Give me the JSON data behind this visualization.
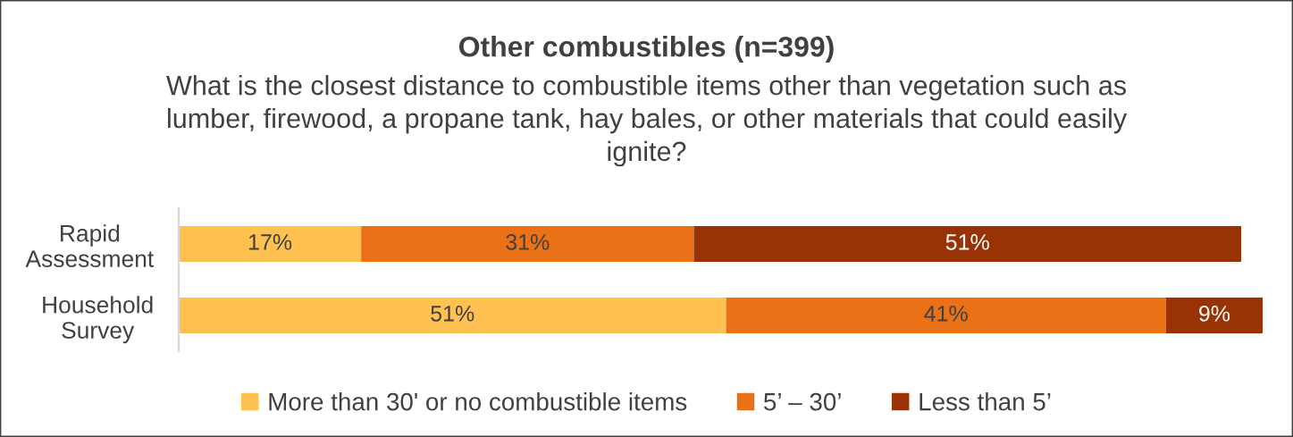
{
  "chart_data": {
    "type": "bar",
    "orientation": "horizontal",
    "stacked": true,
    "title": "Other combustibles (n=399)",
    "subtitle": "What is the closest distance to combustible items other than vegetation such as lumber, firewood, a propane tank, hay bales, or other materials that could easily ignite?",
    "categories": [
      "Rapid Assessment",
      "Household Survey"
    ],
    "series": [
      {
        "name": "More than 30' or no combustible items",
        "color": "#ffc14f",
        "values": [
          17,
          51
        ],
        "value_labels": [
          "17%",
          "51%"
        ]
      },
      {
        "name": "5’ – 30’",
        "color": "#eb7116",
        "values": [
          31,
          41
        ],
        "value_labels": [
          "31%",
          "41%"
        ]
      },
      {
        "name": "Less than 5’",
        "color": "#993305",
        "values": [
          51,
          9
        ],
        "value_labels": [
          "51%",
          "9%"
        ]
      }
    ],
    "legend": "bottom",
    "tick_labels": "y"
  }
}
